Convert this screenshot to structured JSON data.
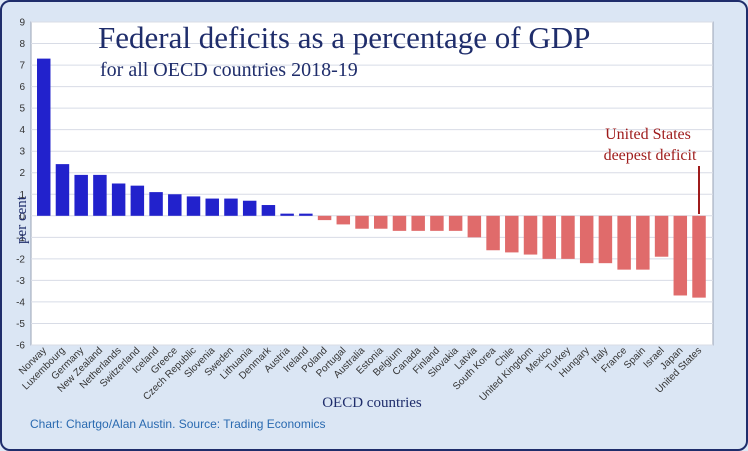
{
  "chart_data": {
    "type": "bar",
    "title": "Federal deficits as a percentage of GDP",
    "subtitle": "for all OECD countries 2018-19",
    "xlabel": "OECD countries",
    "ylabel": "per cent",
    "ylim": [
      -6,
      9
    ],
    "yticks": [
      "-6",
      "-5",
      "-4",
      "-3",
      "-2",
      "-1",
      "0",
      "1",
      "2",
      "3",
      "4",
      "5",
      "6",
      "7",
      "8",
      "9"
    ],
    "grid": true,
    "positive_color": "#2222cc",
    "negative_color": "#e06b6b",
    "categories": [
      "Norway",
      "Luxembourg",
      "Germany",
      "New Zealand",
      "Netherlands",
      "Switzerland",
      "Iceland",
      "Greece",
      "Czech Republic",
      "Slovenia",
      "Sweden",
      "Lithuania",
      "Denmark",
      "Austria",
      "Ireland",
      "Poland",
      "Portugal",
      "Australia",
      "Estonia",
      "Belgium",
      "Canada",
      "Finland",
      "Slovakia",
      "Latvia",
      "South Korea",
      "Chile",
      "United Kingdom",
      "Mexico",
      "Turkey",
      "Hungary",
      "Italy",
      "France",
      "Spain",
      "Israel",
      "Japan",
      "United States"
    ],
    "values": [
      7.3,
      2.4,
      1.9,
      1.9,
      1.5,
      1.4,
      1.1,
      1.0,
      0.9,
      0.8,
      0.8,
      0.7,
      0.5,
      0.1,
      0.1,
      -0.2,
      -0.4,
      -0.6,
      -0.6,
      -0.7,
      -0.7,
      -0.7,
      -0.7,
      -1.0,
      -1.6,
      -1.7,
      -1.8,
      -2.0,
      -2.0,
      -2.2,
      -2.2,
      -2.5,
      -2.5,
      -1.9,
      -3.7,
      -3.8
    ],
    "annotation": {
      "lines": [
        "United States",
        "deepest deficit"
      ],
      "target": "United States",
      "color": "#9e1b1b"
    }
  },
  "source_text": "Chart: Chartgo/Alan Austin. Source: Trading Economics"
}
